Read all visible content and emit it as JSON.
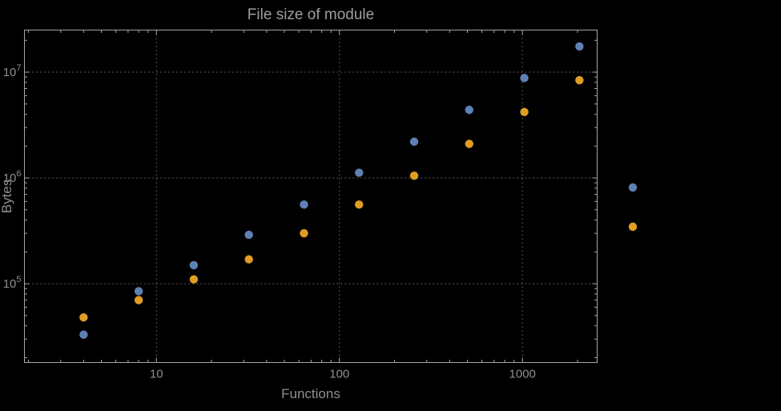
{
  "chart_data": {
    "type": "scatter",
    "title": "File size of module",
    "xlabel": "Functions",
    "ylabel": "Bytes",
    "x_scale": "log",
    "y_scale": "log",
    "xlim": [
      1.9,
      2560
    ],
    "ylim": [
      18000,
      25000000
    ],
    "grid": "dotted",
    "x_ticks": {
      "values": [
        10,
        100,
        1000
      ],
      "labels": [
        "10",
        "100",
        "1000"
      ]
    },
    "y_ticks": {
      "values": [
        100000,
        1000000,
        10000000
      ],
      "base": "10",
      "exponents": [
        "5",
        "6",
        "7"
      ]
    },
    "x": [
      4,
      8,
      16,
      32,
      64,
      128,
      256,
      512,
      1024,
      2048
    ],
    "series": [
      {
        "name": "series-blue",
        "color": "#5e81b5",
        "values": [
          33000,
          85000,
          150000,
          290000,
          560000,
          1120000,
          2200000,
          4400000,
          8800000,
          17500000
        ]
      },
      {
        "name": "series-orange",
        "color": "#e19c24",
        "values": [
          48000,
          70000,
          110000,
          170000,
          300000,
          560000,
          1050000,
          2100000,
          4200000,
          8400000
        ]
      }
    ],
    "legend": {
      "position": "right-outside",
      "marker_colors": [
        "#5e81b5",
        "#e19c24"
      ],
      "labels_visible": false
    }
  },
  "colors": {
    "background": "#000000",
    "frame": "#a6a6a6",
    "grid": "#6f6f6f",
    "tick_text": "#8f8f8f",
    "title_text": "#9e9e9e"
  }
}
